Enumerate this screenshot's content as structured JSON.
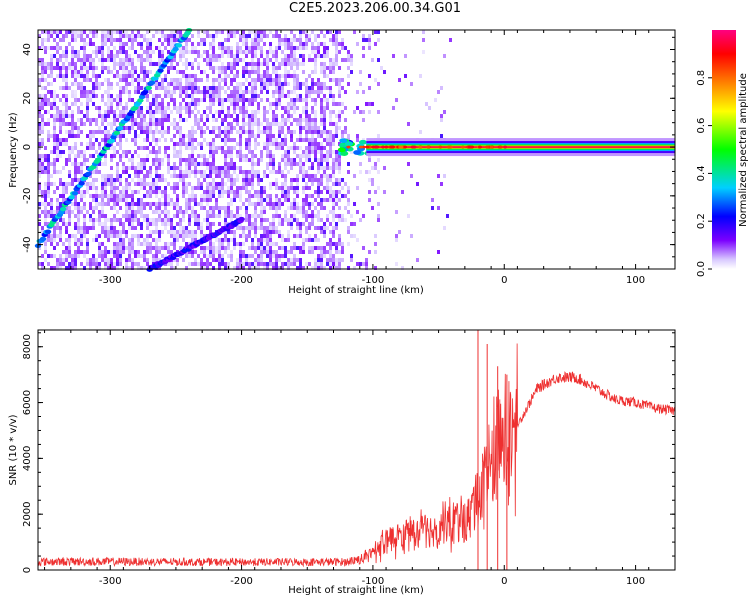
{
  "title": "C2E5.2023.206.00.34.G01",
  "chart_data": [
    {
      "type": "heatmap",
      "xlabel": "Height of straight line (km)",
      "ylabel": "Frequency (Hz)",
      "xlim": [
        -355,
        130
      ],
      "ylim": [
        -50,
        48
      ],
      "x_ticks": [
        -300,
        -200,
        -100,
        0,
        100
      ],
      "y_ticks": [
        -40,
        -20,
        0,
        20,
        40
      ],
      "colorbar": {
        "label": "Normalized spectral amplitude",
        "range": [
          0,
          1
        ],
        "ticks": [
          0.0,
          0.2,
          0.4,
          0.6,
          0.8
        ],
        "colors": [
          "#ffffff",
          "#7b00ff",
          "#0000ff",
          "#00ffff",
          "#00ff00",
          "#ffff00",
          "#ff8000",
          "#ff0000",
          "#ff0080"
        ]
      },
      "features": [
        {
          "kind": "diagonal-trace",
          "from": [
            -355,
            -40
          ],
          "to": [
            -240,
            48
          ],
          "amplitude": 0.35
        },
        {
          "kind": "diagonal-trace",
          "from": [
            -270,
            -50
          ],
          "to": [
            -200,
            -30
          ],
          "amplitude": 0.2
        },
        {
          "kind": "carrier-line",
          "x_from": -125,
          "x_to": 130,
          "y": 0,
          "amplitude": 1.0
        }
      ]
    },
    {
      "type": "line",
      "xlabel": "Height of straight line (km)",
      "ylabel": "SNR (10 * v/v)",
      "xlim": [
        -355,
        130
      ],
      "ylim": [
        0,
        8600
      ],
      "x_ticks": [
        -300,
        -200,
        -100,
        0,
        100
      ],
      "y_ticks": [
        0,
        2000,
        4000,
        6000,
        8000
      ],
      "color": "#ee3030",
      "series_points": [
        [
          -355,
          300
        ],
        [
          -300,
          300
        ],
        [
          -200,
          280
        ],
        [
          -120,
          290
        ],
        [
          -105,
          450
        ],
        [
          -95,
          900
        ],
        [
          -85,
          1100
        ],
        [
          -70,
          1300
        ],
        [
          -60,
          1400
        ],
        [
          -50,
          1500
        ],
        [
          -40,
          1900
        ],
        [
          -30,
          1700
        ],
        [
          -20,
          2500
        ],
        [
          -15,
          3200
        ],
        [
          -5,
          4200
        ],
        [
          5,
          4800
        ],
        [
          15,
          5600
        ],
        [
          25,
          6500
        ],
        [
          40,
          6900
        ],
        [
          55,
          6900
        ],
        [
          70,
          6500
        ],
        [
          85,
          6100
        ],
        [
          100,
          6000
        ],
        [
          115,
          5800
        ],
        [
          130,
          5700
        ]
      ],
      "spikes": [
        [
          -20,
          8600
        ],
        [
          -13,
          8100
        ],
        [
          -5,
          7300
        ],
        [
          2,
          7000
        ]
      ]
    }
  ]
}
